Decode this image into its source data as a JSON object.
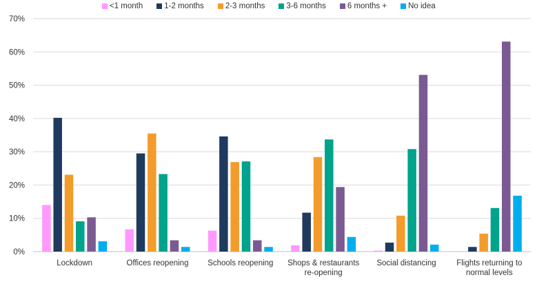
{
  "chart_data": {
    "type": "bar",
    "title": "",
    "xlabel": "",
    "ylabel": "",
    "ylim": [
      0,
      70
    ],
    "yticks": [
      0,
      10,
      20,
      30,
      40,
      50,
      60,
      70
    ],
    "ytick_labels": [
      "0%",
      "10%",
      "20%",
      "30%",
      "40%",
      "50%",
      "60%",
      "70%"
    ],
    "grid": true,
    "legend_position": "top",
    "categories": [
      [
        "Lockdown"
      ],
      [
        "Offices reopening"
      ],
      [
        "Schools reopening"
      ],
      [
        "Shops & restaurants",
        "re-opening"
      ],
      [
        "Social distancing"
      ],
      [
        "Flights returning to",
        "normal levels"
      ]
    ],
    "series": [
      {
        "name": "<1 month",
        "color": "#ff99ff",
        "values": [
          14,
          6.7,
          6.3,
          1.9,
          0.3,
          0
        ]
      },
      {
        "name": "1-2 months",
        "color": "#1f3a5f",
        "values": [
          40.2,
          29.5,
          34.6,
          11.7,
          2.7,
          1.4
        ]
      },
      {
        "name": "2-3 months",
        "color": "#f39c2b",
        "values": [
          23.1,
          35.5,
          26.9,
          28.4,
          10.8,
          5.4
        ]
      },
      {
        "name": "3-6 months",
        "color": "#00a38b",
        "values": [
          9.1,
          23.3,
          27.1,
          33.7,
          30.8,
          13.1
        ]
      },
      {
        "name": "6 months +",
        "color": "#7b5a93",
        "values": [
          10.3,
          3.4,
          3.4,
          19.4,
          53.1,
          63.1
        ]
      },
      {
        "name": "No idea",
        "color": "#00aeef",
        "values": [
          3.1,
          1.4,
          1.4,
          4.4,
          2.1,
          16.8
        ]
      }
    ]
  }
}
